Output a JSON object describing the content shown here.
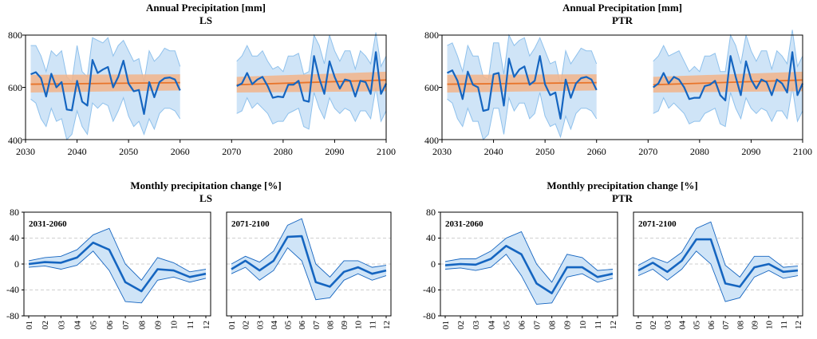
{
  "colors": {
    "ens_band": "#cfe4f7",
    "ens_band_edge": "#8fc1ec",
    "ens_mean": "#1565c0",
    "trend_band": "#f2b48a",
    "trend_line": "#e8742a",
    "grid": "#cfcfcf"
  },
  "chart_data": [
    {
      "id": "annual-ls",
      "type": "line",
      "title": "Annual Precipitation [mm]",
      "subtitle": "LS",
      "ylim": [
        400,
        800
      ],
      "yticks": [
        400,
        600,
        800
      ],
      "xlim": [
        2030,
        2100
      ],
      "xticks": [
        2030,
        2040,
        2050,
        2060,
        2070,
        2080,
        2090,
        2100
      ],
      "periods": [
        {
          "x": [
            2031,
            2032,
            2033,
            2034,
            2035,
            2036,
            2037,
            2038,
            2039,
            2040,
            2041,
            2042,
            2043,
            2044,
            2045,
            2046,
            2047,
            2048,
            2049,
            2050,
            2051,
            2052,
            2053,
            2054,
            2055,
            2056,
            2057,
            2058,
            2059,
            2060
          ],
          "mean": [
            650,
            658,
            635,
            565,
            652,
            600,
            620,
            515,
            512,
            625,
            545,
            530,
            705,
            655,
            668,
            678,
            600,
            640,
            702,
            615,
            585,
            590,
            498,
            620,
            562,
            620,
            635,
            638,
            630,
            588
          ],
          "lower": [
            555,
            540,
            480,
            450,
            520,
            470,
            480,
            400,
            420,
            510,
            450,
            420,
            540,
            520,
            540,
            530,
            470,
            510,
            560,
            490,
            450,
            470,
            420,
            480,
            440,
            500,
            520,
            520,
            510,
            480
          ],
          "upper": [
            760,
            760,
            720,
            660,
            740,
            720,
            740,
            640,
            620,
            760,
            660,
            640,
            790,
            780,
            770,
            790,
            720,
            760,
            780,
            740,
            700,
            710,
            620,
            740,
            700,
            720,
            750,
            740,
            740,
            680
          ],
          "trend": [
            612,
            618
          ],
          "trend_lower": [
            580,
            588
          ],
          "trend_upper": [
            648,
            650
          ]
        },
        {
          "x": [
            2071,
            2072,
            2073,
            2074,
            2075,
            2076,
            2077,
            2078,
            2079,
            2080,
            2081,
            2082,
            2083,
            2084,
            2085,
            2086,
            2087,
            2088,
            2089,
            2090,
            2091,
            2092,
            2093,
            2094,
            2095,
            2096,
            2097,
            2098,
            2099,
            2100
          ],
          "mean": [
            605,
            615,
            655,
            612,
            630,
            640,
            605,
            560,
            565,
            562,
            610,
            610,
            625,
            550,
            545,
            720,
            635,
            575,
            700,
            640,
            595,
            630,
            625,
            565,
            625,
            620,
            575,
            735,
            575,
            615
          ],
          "lower": [
            500,
            510,
            560,
            520,
            540,
            520,
            500,
            460,
            470,
            470,
            500,
            510,
            520,
            450,
            440,
            580,
            520,
            480,
            560,
            520,
            500,
            520,
            510,
            470,
            510,
            510,
            480,
            600,
            470,
            510
          ],
          "upper": [
            700,
            720,
            760,
            720,
            720,
            740,
            700,
            670,
            680,
            660,
            720,
            720,
            730,
            650,
            660,
            800,
            760,
            690,
            800,
            740,
            700,
            740,
            740,
            670,
            740,
            720,
            690,
            810,
            680,
            720
          ],
          "trend": [
            610,
            628
          ],
          "trend_lower": [
            580,
            585
          ],
          "trend_upper": [
            640,
            660
          ]
        }
      ]
    },
    {
      "id": "annual-ptr",
      "type": "line",
      "title": "Annual Precipitation [mm]",
      "subtitle": "PTR",
      "ylim": [
        400,
        800
      ],
      "yticks": [
        400,
        600,
        800
      ],
      "xlim": [
        2030,
        2100
      ],
      "xticks": [
        2030,
        2040,
        2050,
        2060,
        2070,
        2080,
        2090,
        2100
      ],
      "periods": [
        {
          "x": [
            2031,
            2032,
            2033,
            2034,
            2035,
            2036,
            2037,
            2038,
            2039,
            2040,
            2041,
            2042,
            2043,
            2044,
            2045,
            2046,
            2047,
            2048,
            2049,
            2050,
            2051,
            2052,
            2053,
            2054,
            2055,
            2056,
            2057,
            2058,
            2059,
            2060
          ],
          "mean": [
            655,
            665,
            625,
            555,
            660,
            610,
            600,
            510,
            515,
            650,
            655,
            530,
            710,
            640,
            668,
            680,
            610,
            625,
            720,
            612,
            570,
            580,
            480,
            630,
            560,
            615,
            635,
            640,
            630,
            590
          ],
          "lower": [
            555,
            540,
            480,
            450,
            520,
            470,
            470,
            400,
            420,
            520,
            520,
            420,
            560,
            510,
            540,
            540,
            480,
            500,
            580,
            490,
            450,
            460,
            410,
            490,
            440,
            500,
            520,
            520,
            510,
            480
          ],
          "upper": [
            760,
            770,
            720,
            660,
            760,
            720,
            720,
            640,
            630,
            770,
            770,
            650,
            800,
            760,
            780,
            790,
            720,
            750,
            790,
            740,
            690,
            700,
            610,
            740,
            690,
            720,
            750,
            740,
            740,
            690
          ],
          "trend": [
            612,
            618
          ],
          "trend_lower": [
            580,
            588
          ],
          "trend_upper": [
            648,
            650
          ]
        },
        {
          "x": [
            2071,
            2072,
            2073,
            2074,
            2075,
            2076,
            2077,
            2078,
            2079,
            2080,
            2081,
            2082,
            2083,
            2084,
            2085,
            2086,
            2087,
            2088,
            2089,
            2090,
            2091,
            2092,
            2093,
            2094,
            2095,
            2096,
            2097,
            2098,
            2099,
            2100
          ],
          "mean": [
            600,
            615,
            655,
            615,
            640,
            630,
            600,
            555,
            560,
            560,
            605,
            610,
            625,
            570,
            550,
            720,
            640,
            570,
            700,
            630,
            595,
            630,
            620,
            570,
            630,
            615,
            580,
            735,
            570,
            615
          ],
          "lower": [
            500,
            510,
            560,
            520,
            540,
            520,
            500,
            460,
            470,
            470,
            500,
            510,
            520,
            460,
            450,
            580,
            520,
            480,
            560,
            520,
            500,
            520,
            510,
            470,
            510,
            510,
            480,
            600,
            470,
            510
          ],
          "upper": [
            700,
            720,
            760,
            720,
            730,
            740,
            700,
            660,
            680,
            660,
            720,
            720,
            730,
            660,
            660,
            800,
            760,
            690,
            800,
            740,
            700,
            740,
            740,
            670,
            740,
            720,
            690,
            820,
            680,
            720
          ],
          "trend": [
            610,
            628
          ],
          "trend_lower": [
            580,
            585
          ],
          "trend_upper": [
            640,
            660
          ]
        }
      ]
    },
    {
      "id": "monthly-ls",
      "type": "line",
      "title": "Monthly precipitation change [%]",
      "subtitle": "LS",
      "ylim": [
        -80,
        80
      ],
      "yticks": [
        -80,
        -40,
        0,
        40,
        80
      ],
      "categories": [
        "01",
        "02",
        "03",
        "04",
        "05",
        "06",
        "07",
        "08",
        "09",
        "10",
        "11",
        "12"
      ],
      "panels": [
        {
          "label": "2031-2060",
          "mean": [
            0,
            3,
            2,
            10,
            33,
            22,
            -28,
            -42,
            -8,
            -10,
            -20,
            -15
          ],
          "lower": [
            -5,
            -3,
            -8,
            -2,
            20,
            -10,
            -58,
            -60,
            -25,
            -20,
            -28,
            -22
          ],
          "upper": [
            5,
            10,
            12,
            22,
            45,
            55,
            0,
            -25,
            10,
            2,
            -12,
            -8
          ]
        },
        {
          "label": "2071-2100",
          "mean": [
            -8,
            5,
            -10,
            5,
            42,
            43,
            -28,
            -35,
            -12,
            -5,
            -15,
            -10
          ],
          "lower": [
            -15,
            -5,
            -25,
            -10,
            25,
            5,
            -55,
            -52,
            -25,
            -15,
            -25,
            -18
          ],
          "upper": [
            0,
            12,
            3,
            20,
            60,
            70,
            0,
            -20,
            5,
            5,
            -5,
            -2
          ]
        }
      ]
    },
    {
      "id": "monthly-ptr",
      "type": "line",
      "title": "Monthly precipitation change [%]",
      "subtitle": "PTR",
      "ylim": [
        -80,
        80
      ],
      "yticks": [
        -80,
        -40,
        0,
        40,
        80
      ],
      "categories": [
        "01",
        "02",
        "03",
        "04",
        "05",
        "06",
        "07",
        "08",
        "09",
        "10",
        "11",
        "12"
      ],
      "panels": [
        {
          "label": "2031-2060",
          "mean": [
            -2,
            0,
            -1,
            8,
            28,
            15,
            -30,
            -45,
            -5,
            -5,
            -20,
            -15
          ],
          "lower": [
            -8,
            -6,
            -10,
            -5,
            15,
            -18,
            -62,
            -60,
            -20,
            -15,
            -28,
            -22
          ],
          "upper": [
            4,
            8,
            8,
            20,
            40,
            50,
            0,
            -28,
            15,
            10,
            -10,
            -8
          ]
        },
        {
          "label": "2071-2100",
          "mean": [
            -10,
            2,
            -12,
            5,
            38,
            38,
            -30,
            -35,
            -5,
            0,
            -12,
            -10
          ],
          "lower": [
            -18,
            -8,
            -25,
            -8,
            20,
            0,
            -58,
            -52,
            -20,
            -10,
            -22,
            -18
          ],
          "upper": [
            -2,
            10,
            2,
            18,
            55,
            65,
            -2,
            -20,
            12,
            12,
            -5,
            -3
          ]
        }
      ]
    }
  ]
}
